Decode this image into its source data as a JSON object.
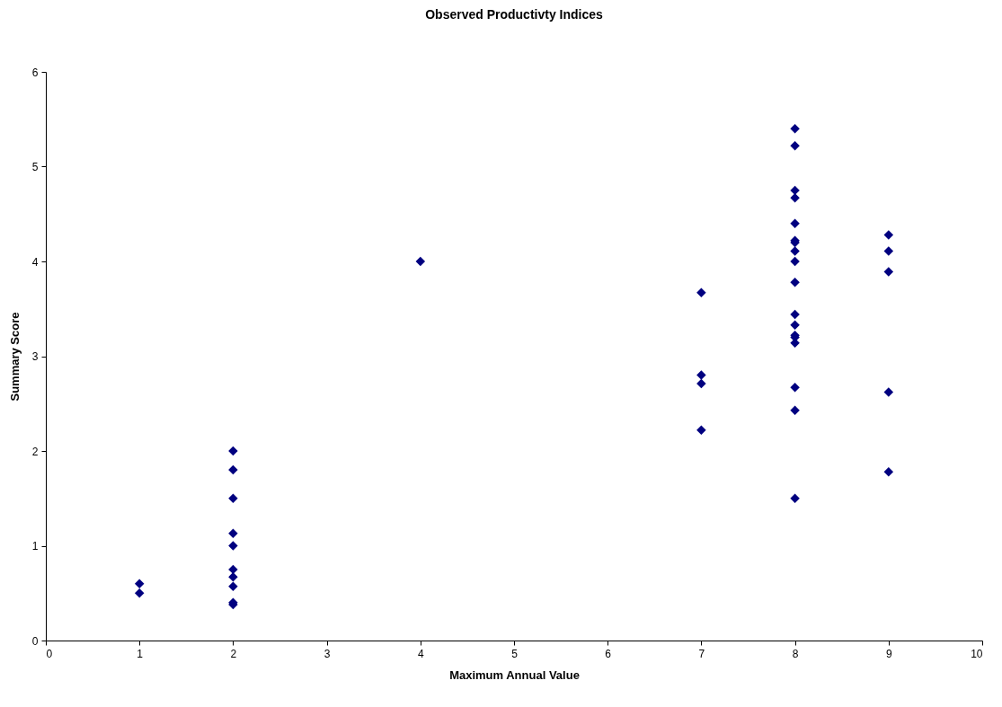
{
  "chart_data": {
    "type": "scatter",
    "title": "Observed Productivty Indices",
    "xlabel": "Maximum Annual Value",
    "ylabel": "Summary Score",
    "marker": "diamond",
    "grid": false,
    "xlim": [
      0,
      10
    ],
    "xticks": [
      0,
      1,
      2,
      3,
      4,
      5,
      6,
      7,
      8,
      9,
      10
    ],
    "ylim": [
      0,
      6
    ],
    "yticks": [
      0,
      1,
      2,
      3,
      4,
      5,
      6
    ],
    "series": [
      {
        "color": "#000080",
        "x": [
          1,
          1,
          2,
          2,
          2,
          2,
          2,
          2,
          2,
          2,
          2,
          2,
          4,
          7,
          7,
          7,
          7,
          8,
          8,
          8,
          8,
          8,
          8,
          8,
          8,
          8,
          8,
          8,
          8,
          8,
          8,
          8,
          8,
          8,
          8,
          9,
          9,
          9,
          9,
          9
        ],
        "values": [
          0.6,
          0.5,
          2.0,
          1.8,
          1.5,
          1.13,
          1.0,
          0.75,
          0.67,
          0.57,
          0.4,
          0.38,
          4.0,
          3.67,
          2.8,
          2.71,
          2.22,
          5.4,
          5.22,
          4.75,
          4.67,
          4.4,
          4.22,
          4.2,
          4.11,
          4.0,
          3.78,
          3.44,
          3.33,
          3.22,
          3.2,
          3.14,
          2.67,
          2.43,
          1.5,
          4.28,
          4.11,
          3.89,
          2.62,
          1.78
        ]
      }
    ]
  }
}
